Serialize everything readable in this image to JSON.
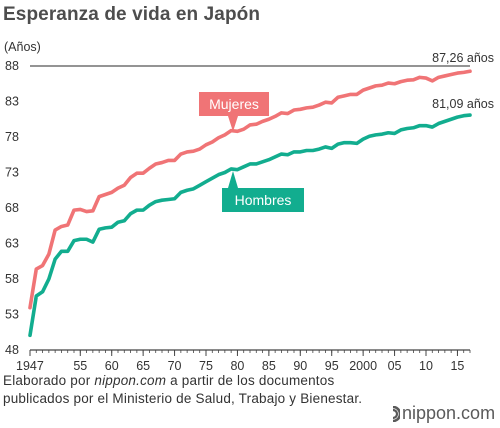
{
  "title": "Esperanza de vida en Japón",
  "source": {
    "prefix": "Elaborado por ",
    "site": "nippon.com",
    "suffix": " a partir de los documentos",
    "line2": "publicados por el Ministerio de Salud, Trabajo y Bienestar."
  },
  "brand": "nippon.com",
  "colors": {
    "women": "#f07476",
    "men": "#12ad8f",
    "axis": "#444444",
    "grid": "#c8c8c8"
  },
  "chart_data": {
    "type": "line",
    "title": "Esperanza de vida en Japón",
    "ylabel": "(Años)",
    "xlabel": "",
    "ylim": [
      48,
      88
    ],
    "yticks": [
      48,
      53,
      58,
      63,
      68,
      73,
      78,
      83,
      88
    ],
    "xlim": [
      1947,
      2017
    ],
    "xticks": [
      {
        "value": 1947,
        "label": "1947"
      },
      {
        "value": 1955,
        "label": "55"
      },
      {
        "value": 1960,
        "label": "60"
      },
      {
        "value": 1965,
        "label": "65"
      },
      {
        "value": 1970,
        "label": "70"
      },
      {
        "value": 1975,
        "label": "75"
      },
      {
        "value": 1980,
        "label": "80"
      },
      {
        "value": 1985,
        "label": "85"
      },
      {
        "value": 1990,
        "label": "90"
      },
      {
        "value": 1995,
        "label": "95"
      },
      {
        "value": 2000,
        "label": "2000"
      },
      {
        "value": 2005,
        "label": "05"
      },
      {
        "value": 2010,
        "label": "10"
      },
      {
        "value": 2015,
        "label": "15"
      }
    ],
    "x": [
      1947,
      1948,
      1949,
      1950,
      1951,
      1952,
      1953,
      1954,
      1955,
      1956,
      1957,
      1958,
      1959,
      1960,
      1961,
      1962,
      1963,
      1964,
      1965,
      1966,
      1967,
      1968,
      1969,
      1970,
      1971,
      1972,
      1973,
      1974,
      1975,
      1976,
      1977,
      1978,
      1979,
      1980,
      1981,
      1982,
      1983,
      1984,
      1985,
      1986,
      1987,
      1988,
      1989,
      1990,
      1991,
      1992,
      1993,
      1994,
      1995,
      1996,
      1997,
      1998,
      1999,
      2000,
      2001,
      2002,
      2003,
      2004,
      2005,
      2006,
      2007,
      2008,
      2009,
      2010,
      2011,
      2012,
      2013,
      2014,
      2015,
      2016,
      2017
    ],
    "series": [
      {
        "name": "Mujeres",
        "end_label": "87,26 años",
        "values": [
          53.96,
          59.4,
          59.9,
          61.5,
          64.9,
          65.4,
          65.6,
          67.7,
          67.8,
          67.5,
          67.6,
          69.6,
          69.9,
          70.2,
          70.8,
          71.2,
          72.3,
          72.9,
          72.9,
          73.6,
          74.2,
          74.4,
          74.7,
          74.7,
          75.6,
          75.9,
          76.0,
          76.3,
          76.9,
          77.3,
          77.9,
          78.3,
          78.9,
          78.8,
          79.1,
          79.7,
          79.8,
          80.2,
          80.5,
          80.9,
          81.4,
          81.3,
          81.8,
          81.9,
          82.1,
          82.2,
          82.5,
          82.9,
          82.8,
          83.6,
          83.8,
          84.0,
          84.0,
          84.6,
          84.9,
          85.2,
          85.3,
          85.6,
          85.5,
          85.8,
          86.0,
          86.05,
          86.4,
          86.3,
          85.9,
          86.4,
          86.6,
          86.8,
          87.0,
          87.1,
          87.26
        ]
      },
      {
        "name": "Hombres",
        "end_label": "81,09 años",
        "values": [
          50.06,
          55.6,
          56.2,
          58.0,
          60.8,
          61.9,
          61.9,
          63.4,
          63.6,
          63.6,
          63.2,
          65.0,
          65.2,
          65.3,
          66.0,
          66.2,
          67.2,
          67.7,
          67.7,
          68.4,
          68.9,
          69.1,
          69.2,
          69.3,
          70.2,
          70.5,
          70.7,
          71.2,
          71.7,
          72.2,
          72.7,
          73.0,
          73.5,
          73.4,
          73.8,
          74.2,
          74.2,
          74.5,
          74.8,
          75.2,
          75.6,
          75.5,
          75.9,
          75.9,
          76.1,
          76.1,
          76.3,
          76.6,
          76.4,
          77.0,
          77.2,
          77.2,
          77.1,
          77.7,
          78.1,
          78.3,
          78.4,
          78.6,
          78.5,
          79.0,
          79.2,
          79.3,
          79.6,
          79.6,
          79.4,
          79.9,
          80.2,
          80.5,
          80.8,
          81.0,
          81.09
        ]
      }
    ],
    "grid": "single top reference line at 88",
    "legend": "inline tags on lines"
  }
}
